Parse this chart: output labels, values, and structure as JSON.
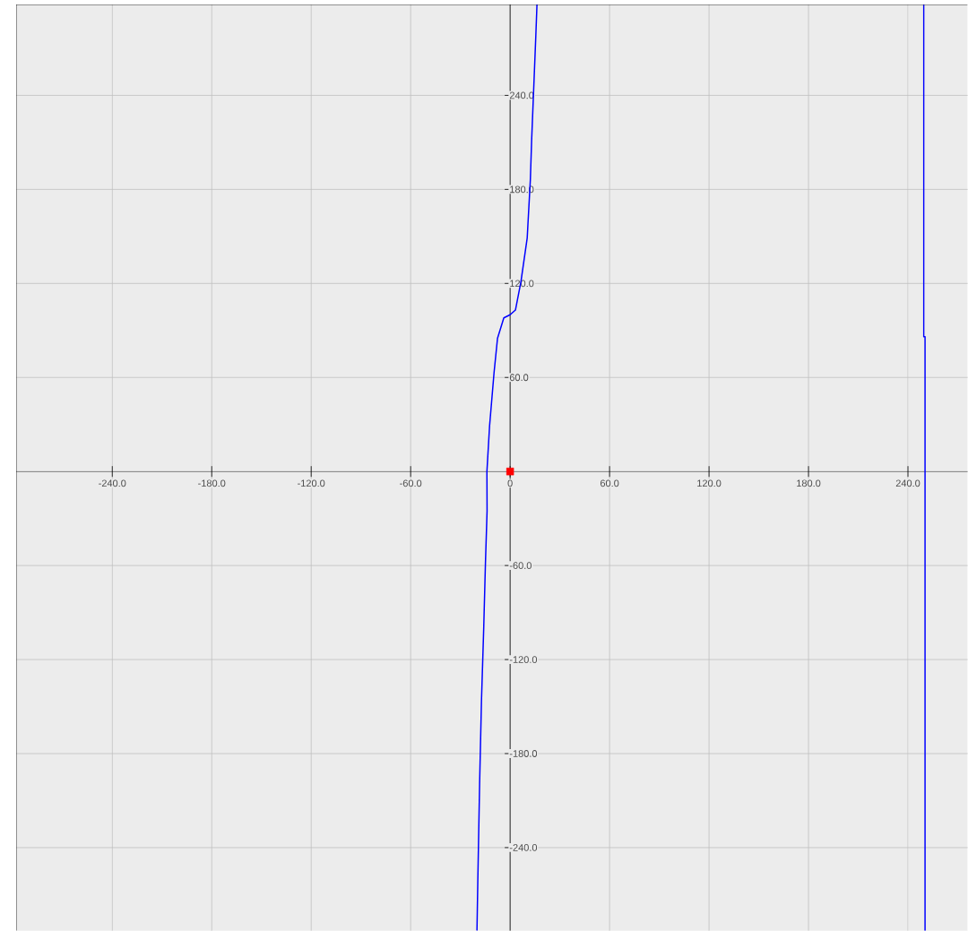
{
  "chart_data": {
    "type": "line",
    "xlim": [
      -298,
      276
    ],
    "ylim": [
      -293,
      298
    ],
    "grid": true,
    "marker": "none",
    "line_style": "solid",
    "xticks": [
      {
        "value": -240,
        "label": "-240.0"
      },
      {
        "value": -180,
        "label": "-180.0"
      },
      {
        "value": -120,
        "label": "-120.0"
      },
      {
        "value": -60,
        "label": "-60.0"
      },
      {
        "value": 0,
        "label": "0"
      },
      {
        "value": 60,
        "label": "60.0"
      },
      {
        "value": 120,
        "label": "120.0"
      },
      {
        "value": 180,
        "label": "180.0"
      },
      {
        "value": 240,
        "label": "240.0"
      }
    ],
    "yticks": [
      {
        "value": -240,
        "label": "-240.0"
      },
      {
        "value": -180,
        "label": "-180.0"
      },
      {
        "value": -120,
        "label": "-120.0"
      },
      {
        "value": -60,
        "label": "-60.0"
      },
      {
        "value": 60,
        "label": "60.0"
      },
      {
        "value": 120,
        "label": "120.0"
      },
      {
        "value": 180,
        "label": "180.0"
      },
      {
        "value": 240,
        "label": "240.0"
      }
    ],
    "series": [
      {
        "color": "#0000ff",
        "x": [
          -20,
          -19.5,
          -18.4,
          -17.3,
          -15.9,
          -14.9,
          -13.9,
          -14,
          -12.4,
          -9.7,
          -7.6,
          -3.8,
          0,
          3.2,
          6.5,
          10.3,
          12.2,
          13,
          15.5,
          16.2
        ],
        "values": [
          -293,
          -262,
          -199,
          -147,
          -99,
          -59,
          -25,
          0,
          29,
          63,
          85,
          98,
          100,
          103,
          121,
          149,
          186,
          212,
          278,
          298
        ]
      },
      {
        "color": "#0000ff",
        "x": [
          249.5,
          249.5,
          250.3,
          250.3
        ],
        "values": [
          298,
          86,
          86,
          -293
        ]
      },
      {
        "type": "scatter",
        "color": "#ff0000",
        "marker": "square",
        "x": [
          0
        ],
        "values": [
          0
        ]
      }
    ]
  }
}
